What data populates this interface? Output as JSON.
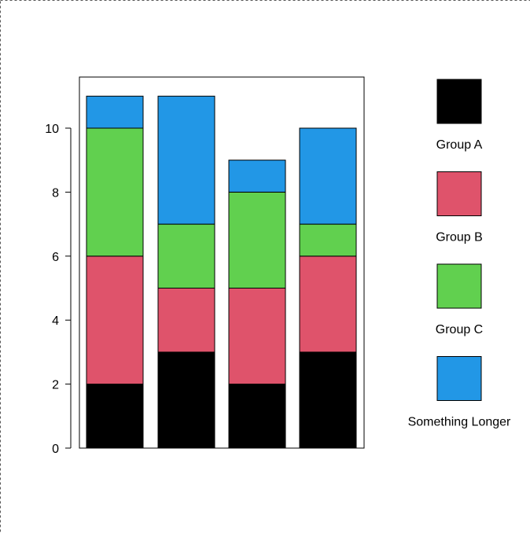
{
  "chart_data": {
    "type": "bar",
    "stacked": true,
    "categories": [
      "",
      "",
      "",
      ""
    ],
    "series": [
      {
        "name": "Group A",
        "color": "#000000",
        "values": [
          2,
          3,
          2,
          3
        ]
      },
      {
        "name": "Group B",
        "color": "#DF536B",
        "values": [
          4,
          2,
          3,
          3
        ]
      },
      {
        "name": "Group C",
        "color": "#61D04F",
        "values": [
          4,
          2,
          3,
          1
        ]
      },
      {
        "name": "Something Longer",
        "color": "#2297E6",
        "values": [
          1,
          4,
          1,
          3
        ]
      }
    ],
    "ylim": [
      0,
      11
    ],
    "yticks": [
      0,
      2,
      4,
      6,
      8,
      10
    ],
    "title": "",
    "xlabel": "",
    "ylabel": "",
    "grid": false,
    "legend_position": "right"
  }
}
